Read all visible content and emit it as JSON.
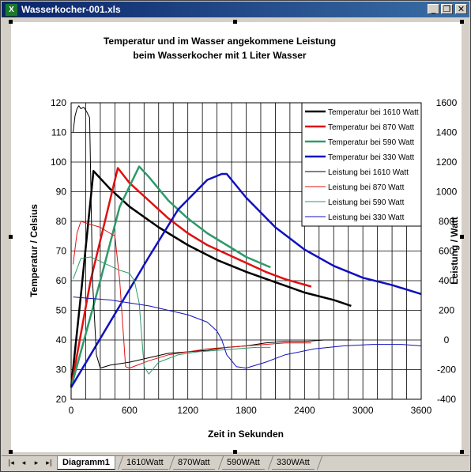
{
  "window": {
    "title": "Wasserkocher-001.xls",
    "app_icon": "excel-icon",
    "buttons": [
      "minimize",
      "restore",
      "close"
    ]
  },
  "sheet_tabs": [
    {
      "label": "Diagramm1",
      "active": true
    },
    {
      "label": "1610Watt",
      "active": false
    },
    {
      "label": "870Watt",
      "active": false
    },
    {
      "label": "590WAtt",
      "active": false
    },
    {
      "label": "330WAtt",
      "active": false
    }
  ],
  "chart_data": {
    "type": "line",
    "title": "Temperatur und im Wasser angekommene Leistung",
    "subtitle": "beim Wasserkocher mit 1 Liter Wasser",
    "xlabel": "Zeit in Sekunden",
    "ylabel": "Temperatur / Celsius",
    "y2label": "Leistung / Watt",
    "xlim": [
      0,
      3600
    ],
    "ylim": [
      20,
      120
    ],
    "y2lim": [
      -400,
      1600
    ],
    "xticks": [
      "0",
      "600",
      "1200",
      "1800",
      "2400",
      "3000",
      "3600"
    ],
    "yticks": [
      "20",
      "30",
      "40",
      "50",
      "60",
      "70",
      "80",
      "90",
      "100",
      "110",
      "120"
    ],
    "y2ticks": [
      "-400",
      "-200",
      "0",
      "200",
      "400",
      "600",
      "800",
      "1000",
      "1200",
      "1400",
      "1600"
    ],
    "grid": true,
    "legend": "top-right",
    "series": [
      {
        "name": "Temperatur bei 1610 Watt",
        "axis": "left",
        "color": "#000000",
        "width": 2.5,
        "x": [
          0,
          100,
          230,
          400,
          600,
          900,
          1200,
          1500,
          1800,
          2100,
          2400,
          2700,
          2880
        ],
        "y": [
          24,
          55,
          97,
          91,
          85,
          78,
          72,
          67,
          63,
          59.5,
          56,
          53.5,
          51.5
        ]
      },
      {
        "name": "Temperatur bei 870 Watt",
        "axis": "left",
        "color": "#e01010",
        "width": 2.5,
        "x": [
          0,
          200,
          480,
          600,
          800,
          1000,
          1200,
          1400,
          1600,
          1800,
          2000,
          2200,
          2470
        ],
        "y": [
          24,
          60,
          98,
          93,
          87,
          81,
          76,
          72,
          69,
          66,
          63,
          60.5,
          58
        ]
      },
      {
        "name": "Temperatur bei 590 Watt",
        "axis": "left",
        "color": "#2e9a6a",
        "width": 2.5,
        "x": [
          0,
          300,
          500,
          700,
          800,
          1000,
          1200,
          1400,
          1600,
          1800,
          2050
        ],
        "y": [
          24,
          60,
          85,
          98.5,
          95,
          87,
          81,
          76,
          72,
          68,
          64.5
        ]
      },
      {
        "name": "Temperatur bei 330 Watt",
        "axis": "left",
        "color": "#1010c0",
        "width": 2.5,
        "x": [
          0,
          400,
          800,
          1100,
          1400,
          1550,
          1600,
          1800,
          2100,
          2400,
          2700,
          3000,
          3300,
          3600
        ],
        "y": [
          24,
          46,
          68,
          84,
          94,
          96,
          96,
          88,
          78,
          70.5,
          65,
          61,
          58.5,
          55.5
        ]
      },
      {
        "name": "Leistung bei 1610 Watt",
        "axis": "right",
        "color": "#000000",
        "width": 1,
        "x": [
          20,
          40,
          60,
          80,
          100,
          130,
          160,
          190,
          220,
          260,
          300,
          400,
          600,
          800,
          1000,
          1200,
          1400,
          1600,
          1800,
          2000,
          2200,
          2400,
          2600,
          2880
        ],
        "y": [
          1400,
          1510,
          1560,
          1580,
          1560,
          1570,
          1540,
          1500,
          400,
          -100,
          -190,
          -170,
          -150,
          -120,
          -90,
          -80,
          -70,
          -50,
          -40,
          -20,
          -10,
          -10,
          0,
          0
        ]
      },
      {
        "name": "Leistung bei 870 Watt",
        "axis": "right",
        "color": "#e01010",
        "width": 1,
        "x": [
          20,
          60,
          100,
          200,
          300,
          400,
          450,
          500,
          560,
          600,
          800,
          1000,
          1200,
          1400,
          1600,
          1800,
          2000,
          2200,
          2470
        ],
        "y": [
          510,
          720,
          800,
          780,
          760,
          720,
          700,
          400,
          -180,
          -190,
          -140,
          -100,
          -80,
          -60,
          -50,
          -40,
          -30,
          -20,
          -20
        ]
      },
      {
        "name": "Leistung bei 590 Watt",
        "axis": "right",
        "color": "#2e9a6a",
        "width": 1,
        "x": [
          20,
          100,
          200,
          300,
          400,
          500,
          600,
          650,
          700,
          750,
          800,
          900,
          1100,
          1300,
          1500,
          1700,
          1900,
          2050
        ],
        "y": [
          410,
          550,
          560,
          530,
          500,
          470,
          450,
          400,
          250,
          -180,
          -230,
          -150,
          -100,
          -80,
          -70,
          -60,
          -50,
          -50
        ]
      },
      {
        "name": "Leistung bei 330 Watt",
        "axis": "right",
        "color": "#1010c0",
        "width": 1,
        "x": [
          20,
          200,
          400,
          600,
          800,
          1000,
          1200,
          1400,
          1500,
          1550,
          1600,
          1700,
          1800,
          2000,
          2200,
          2500,
          2800,
          3100,
          3400,
          3600
        ],
        "y": [
          290,
          280,
          270,
          250,
          230,
          200,
          170,
          120,
          60,
          0,
          -100,
          -180,
          -190,
          -150,
          -100,
          -60,
          -40,
          -30,
          -30,
          -40
        ]
      }
    ]
  }
}
